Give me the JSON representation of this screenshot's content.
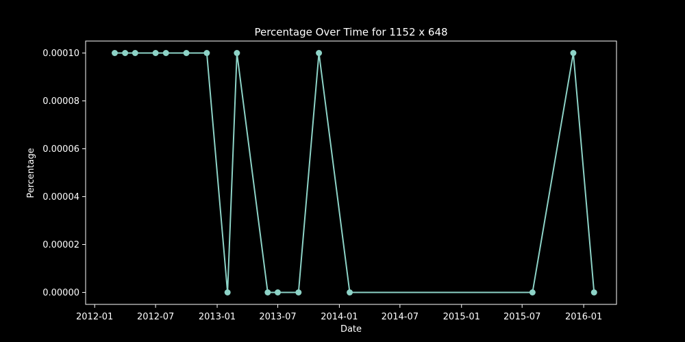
{
  "chart_data": {
    "type": "line",
    "title": "Percentage Over Time for 1152 x 648",
    "xlabel": "Date",
    "ylabel": "Percentage",
    "x_ticks": [
      "2012-01",
      "2012-07",
      "2013-01",
      "2013-07",
      "2014-01",
      "2014-07",
      "2015-01",
      "2015-07",
      "2016-01"
    ],
    "y_ticks": [
      "0.00000",
      "0.00002",
      "0.00004",
      "0.00006",
      "0.00008",
      "0.00010"
    ],
    "xlim": [
      "2011-12-05",
      "2016-04-08"
    ],
    "ylim": [
      -5e-06,
      0.000105
    ],
    "grid": false,
    "series": [
      {
        "color": "#8dd3c7",
        "marker": "circle",
        "points": [
          {
            "x": "2012-03-01",
            "y": 0.0001
          },
          {
            "x": "2012-04-01",
            "y": 0.0001
          },
          {
            "x": "2012-05-01",
            "y": 0.0001
          },
          {
            "x": "2012-07-01",
            "y": 0.0001
          },
          {
            "x": "2012-08-01",
            "y": 0.0001
          },
          {
            "x": "2012-10-01",
            "y": 0.0001
          },
          {
            "x": "2012-12-01",
            "y": 0.0001
          },
          {
            "x": "2013-02-01",
            "y": 0.0
          },
          {
            "x": "2013-03-01",
            "y": 0.0001
          },
          {
            "x": "2013-06-01",
            "y": 0.0
          },
          {
            "x": "2013-07-01",
            "y": 0.0
          },
          {
            "x": "2013-09-01",
            "y": 0.0
          },
          {
            "x": "2013-11-01",
            "y": 0.0001
          },
          {
            "x": "2014-02-01",
            "y": 0.0
          },
          {
            "x": "2015-08-01",
            "y": 0.0
          },
          {
            "x": "2015-12-01",
            "y": 0.0001
          },
          {
            "x": "2016-02-01",
            "y": 0.0
          }
        ]
      }
    ]
  },
  "colors": {
    "background": "#000000",
    "axes": "#ffffff",
    "text": "#ffffff",
    "series": "#8dd3c7"
  }
}
